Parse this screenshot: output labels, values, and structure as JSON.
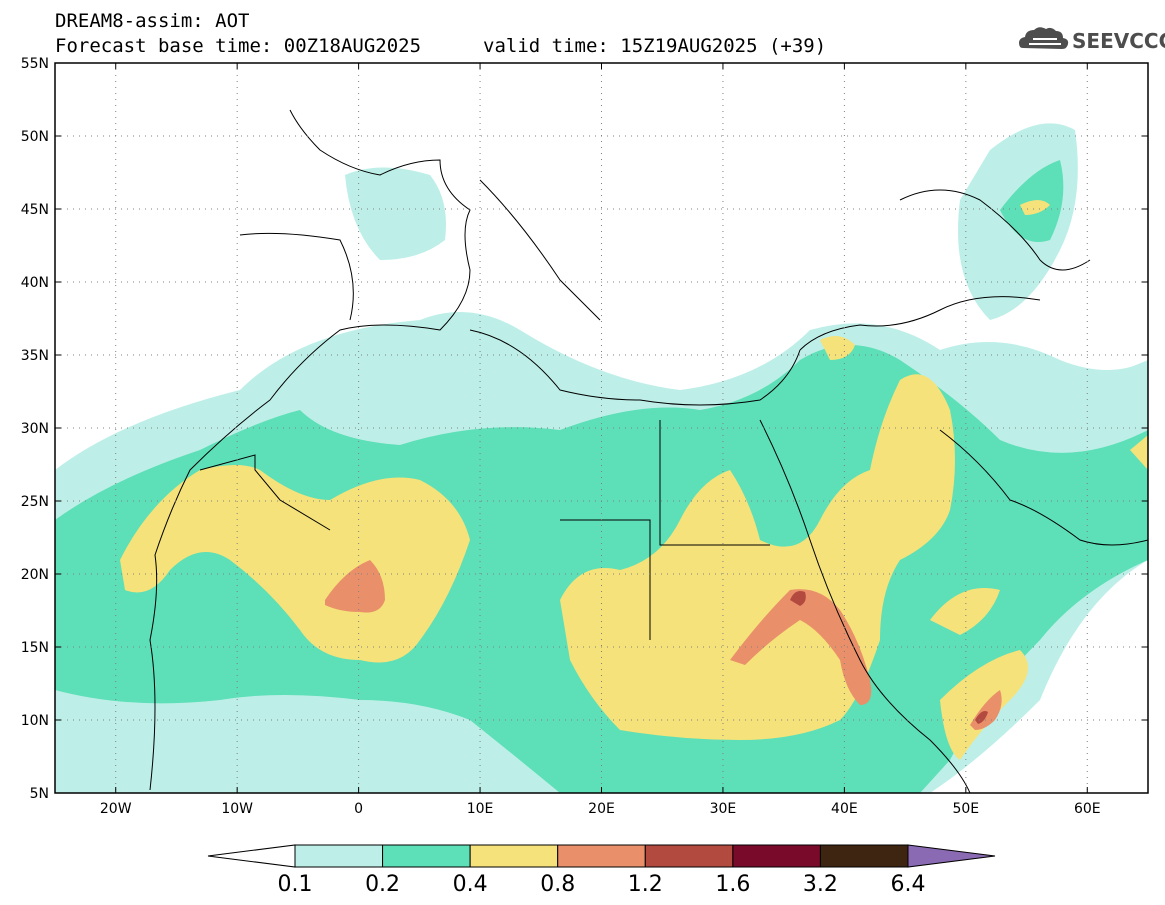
{
  "title": {
    "line1": "DREAM8-assim: AOT",
    "line2_left": "Forecast base time: 00Z18AUG2025",
    "line2_right": "valid time: 15Z19AUG2025 (+39)"
  },
  "logo": {
    "text": "SEEVCCC",
    "icon": "cloud-icon"
  },
  "map": {
    "lat_labels": [
      "55N",
      "50N",
      "45N",
      "40N",
      "35N",
      "30N",
      "25N",
      "20N",
      "15N",
      "10N",
      "5N"
    ],
    "lon_labels": [
      "20W",
      "10W",
      "0",
      "10E",
      "20E",
      "30E",
      "40E",
      "50E",
      "60E"
    ],
    "grid": true
  },
  "colorbar": {
    "levels": [
      "0.1",
      "0.2",
      "0.4",
      "0.8",
      "1.2",
      "1.6",
      "3.2",
      "6.4"
    ],
    "colors": [
      "#bdefe8",
      "#5ddfb7",
      "#f5e27a",
      "#e9906a",
      "#b34a3f",
      "#7a0a2a",
      "#3d2512",
      "#8a6bb3"
    ],
    "under_color": "#ffffff"
  },
  "palette": {
    "c1": "#bdefe8",
    "c2": "#5ddfb7",
    "c3": "#f5e27a",
    "c4": "#e9906a",
    "c5": "#b34a3f"
  }
}
